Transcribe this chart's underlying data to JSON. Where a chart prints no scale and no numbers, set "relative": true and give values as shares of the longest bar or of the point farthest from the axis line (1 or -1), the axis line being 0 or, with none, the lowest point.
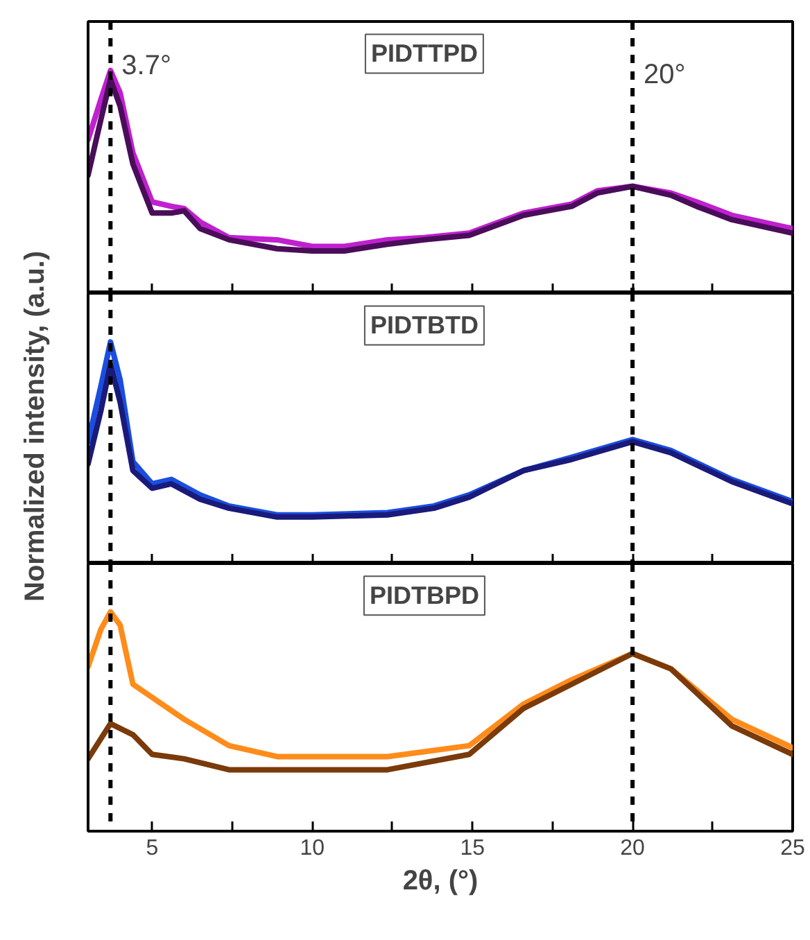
{
  "chart_data": [
    {
      "type": "line",
      "title": "PIDTTPD",
      "relative": true,
      "xlim": [
        3,
        25
      ],
      "xticks": [
        5,
        {
          "value": 7.5,
          "label": null
        },
        10,
        {
          "value": 12.5,
          "label": null
        },
        15,
        {
          "value": 17.5,
          "label": null
        },
        20,
        {
          "value": 22.5,
          "label": null
        },
        25
      ],
      "tick_labels": false,
      "x": [
        3,
        3.4,
        3.7,
        4.0,
        4.4,
        5.0,
        5.6,
        6.0,
        6.5,
        7.4,
        8.9,
        10,
        11,
        12.35,
        13.5,
        14.9,
        16.6,
        18.1,
        18.9,
        20,
        21.2,
        22,
        23.1,
        25
      ],
      "series": [
        {
          "color": "#c020d0",
          "values": [
            0.69,
            0.87,
            1,
            0.9,
            0.63,
            0.41,
            0.39,
            0.38,
            0.32,
            0.25,
            0.24,
            0.21,
            0.21,
            0.24,
            0.25,
            0.27,
            0.36,
            0.4,
            0.46,
            0.48,
            0.45,
            0.41,
            0.35,
            0.29
          ]
        },
        {
          "color": "#4a0d5a",
          "values": [
            0.53,
            0.78,
            0.96,
            0.84,
            0.58,
            0.36,
            0.36,
            0.37,
            0.29,
            0.24,
            0.2,
            0.19,
            0.19,
            0.22,
            0.24,
            0.26,
            0.35,
            0.39,
            0.45,
            0.48,
            0.44,
            0.39,
            0.33,
            0.27
          ]
        }
      ],
      "ref_lines": [
        {
          "axis": "x",
          "value": 3.7,
          "label": "3.7°",
          "line_style": "dashed"
        },
        {
          "axis": "x",
          "value": 20,
          "label": "20°",
          "line_style": "dashed"
        }
      ]
    },
    {
      "type": "line",
      "title": "PIDTBTD",
      "ylabel": "Normalized intensity, (a.u.)",
      "relative": true,
      "xlim": [
        3,
        25
      ],
      "xticks": [
        5,
        {
          "value": 7.5,
          "label": null
        },
        10,
        {
          "value": 12.5,
          "label": null
        },
        15,
        {
          "value": 17.5,
          "label": null
        },
        20,
        {
          "value": 22.5,
          "label": null
        },
        25
      ],
      "tick_labels": false,
      "x": [
        3,
        3.4,
        3.7,
        4.0,
        4.4,
        5.0,
        5.6,
        6.5,
        7.4,
        8.9,
        10,
        12.35,
        13.8,
        14.9,
        16.6,
        18.1,
        20,
        21.2,
        23.1,
        25
      ],
      "series": [
        {
          "color": "#1a4ee0",
          "values": [
            0.55,
            0.8,
            1,
            0.83,
            0.46,
            0.36,
            0.38,
            0.31,
            0.26,
            0.22,
            0.22,
            0.23,
            0.26,
            0.31,
            0.42,
            0.48,
            0.56,
            0.51,
            0.38,
            0.28
          ]
        },
        {
          "color": "#1a1a7a",
          "values": [
            0.45,
            0.69,
            0.9,
            0.73,
            0.42,
            0.34,
            0.36,
            0.29,
            0.25,
            0.21,
            0.21,
            0.22,
            0.25,
            0.3,
            0.42,
            0.47,
            0.55,
            0.5,
            0.37,
            0.27
          ]
        }
      ],
      "ref_lines": [
        {
          "axis": "x",
          "value": 3.7,
          "line_style": "dashed"
        },
        {
          "axis": "x",
          "value": 20,
          "line_style": "dashed"
        }
      ]
    },
    {
      "type": "line",
      "title": "PIDTBPD",
      "xlabel": "2θ, (°)",
      "relative": true,
      "xlim": [
        3,
        25
      ],
      "xticks": [
        5,
        {
          "value": 7.5,
          "label": null
        },
        10,
        {
          "value": 12.5,
          "label": null
        },
        15,
        {
          "value": 17.5,
          "label": null
        },
        20,
        {
          "value": 22.5,
          "label": null
        },
        25
      ],
      "tick_labels": "x",
      "series": [
        {
          "color": "#ff8c1a",
          "x": [
            3,
            3.4,
            3.7,
            4.0,
            4.4,
            5.0,
            6.0,
            7.4,
            8.9,
            12.35,
            14.9,
            16.6,
            18.1,
            20,
            21.2,
            23.1,
            25
          ],
          "values": [
            0.75,
            0.92,
            1,
            0.94,
            0.67,
            0.61,
            0.51,
            0.39,
            0.34,
            0.34,
            0.39,
            0.58,
            0.69,
            0.81,
            0.74,
            0.51,
            0.38
          ]
        },
        {
          "color": "#7a3a0a",
          "x": [
            3,
            3.7,
            4.4,
            5.0,
            6.0,
            7.4,
            8.9,
            12.35,
            14.9,
            16.6,
            18.1,
            20,
            21.2,
            23.1,
            25
          ],
          "values": [
            0.33,
            0.49,
            0.44,
            0.35,
            0.33,
            0.28,
            0.28,
            0.28,
            0.35,
            0.56,
            0.67,
            0.81,
            0.74,
            0.48,
            0.35
          ]
        }
      ],
      "ref_lines": [
        {
          "axis": "x",
          "value": 3.7,
          "line_style": "dashed"
        },
        {
          "axis": "x",
          "value": 20,
          "line_style": "dashed"
        }
      ]
    }
  ]
}
